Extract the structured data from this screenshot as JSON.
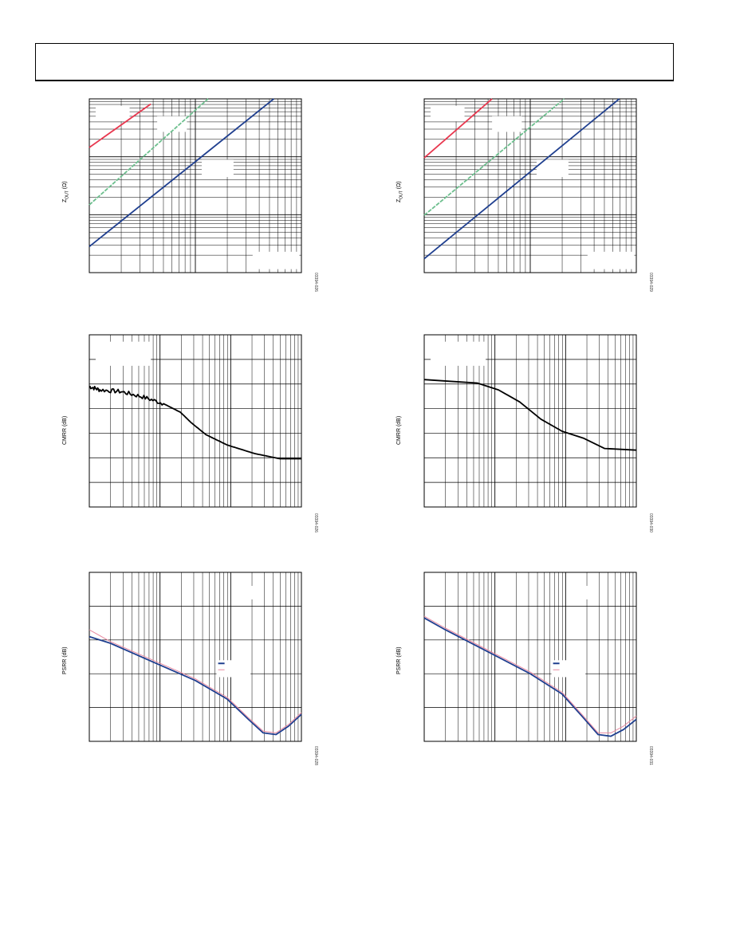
{
  "header": {
    "title": ""
  },
  "colors": {
    "red": "#e8384f",
    "green": "#6dbf8e",
    "blue": "#1f3f8f",
    "black": "#000000",
    "pink": "#e88aa0"
  },
  "panels": [
    {
      "id": "zout-left",
      "ylabel_main": "Z",
      "ylabel_sub": "OUT",
      "ylabel_unit": " (Ω)",
      "fig_id": "03394-026",
      "chart_data": {
        "type": "line",
        "xscale": "log",
        "yscale": "log",
        "xlim_decades": 2,
        "ylim_decades": 3,
        "legend_boxes": [
          "top-left",
          "top-middle",
          "middle",
          "bottom-right"
        ],
        "series": [
          {
            "color": "red",
            "points": [
              [
                0,
                0.72
              ],
              [
                0.29,
                0.97
              ]
            ]
          },
          {
            "color": "green",
            "points": [
              [
                0,
                0.39
              ],
              [
                0.56,
                1.0
              ]
            ]
          },
          {
            "color": "blue",
            "points": [
              [
                0,
                0.15
              ],
              [
                0.87,
                1.0
              ]
            ]
          }
        ]
      }
    },
    {
      "id": "zout-right",
      "ylabel_main": "Z",
      "ylabel_sub": "OUT",
      "ylabel_unit": " (Ω)",
      "fig_id": "03394-029",
      "chart_data": {
        "type": "line",
        "xscale": "log",
        "yscale": "log",
        "xlim_decades": 2,
        "ylim_decades": 3,
        "legend_boxes": [
          "top-left",
          "top-middle",
          "middle",
          "bottom-right"
        ],
        "series": [
          {
            "color": "red",
            "points": [
              [
                0,
                0.66
              ],
              [
                0.32,
                1.0
              ]
            ]
          },
          {
            "color": "green",
            "points": [
              [
                0,
                0.33
              ],
              [
                0.66,
                1.0
              ]
            ]
          },
          {
            "color": "blue",
            "points": [
              [
                0,
                0.08
              ],
              [
                0.92,
                1.0
              ]
            ]
          }
        ]
      }
    },
    {
      "id": "cmrr-left",
      "ylabel_main": "CMRR (dB)",
      "fig_id": "03394-026",
      "chart_data": {
        "type": "line",
        "xscale": "log",
        "xlim_decades": 3,
        "y_gridlines": 7,
        "legend_boxes": [
          "top-left"
        ],
        "series": [
          {
            "color": "black",
            "noisy": true,
            "points": [
              [
                0,
                0.7
              ],
              [
                0.05,
                0.68
              ],
              [
                0.15,
                0.67
              ],
              [
                0.25,
                0.64
              ],
              [
                0.35,
                0.6
              ],
              [
                0.43,
                0.55
              ],
              [
                0.48,
                0.49
              ],
              [
                0.55,
                0.42
              ],
              [
                0.65,
                0.36
              ],
              [
                0.78,
                0.31
              ],
              [
                0.9,
                0.28
              ],
              [
                1.0,
                0.28
              ]
            ]
          }
        ]
      }
    },
    {
      "id": "cmrr-right",
      "ylabel_main": "CMRR (dB)",
      "fig_id": "03394-030",
      "chart_data": {
        "type": "line",
        "xscale": "log",
        "xlim_decades": 3,
        "y_gridlines": 7,
        "legend_boxes": [
          "top-left"
        ],
        "series": [
          {
            "color": "black",
            "points": [
              [
                0,
                0.74
              ],
              [
                0.12,
                0.73
              ],
              [
                0.25,
                0.72
              ],
              [
                0.35,
                0.68
              ],
              [
                0.45,
                0.61
              ],
              [
                0.55,
                0.51
              ],
              [
                0.65,
                0.44
              ],
              [
                0.75,
                0.4
              ],
              [
                0.85,
                0.34
              ],
              [
                1.0,
                0.33
              ]
            ]
          }
        ]
      }
    },
    {
      "id": "psrr-left",
      "ylabel_main": "PSRR (dB)",
      "fig_id": "03394-028",
      "chart_data": {
        "type": "line",
        "xscale": "log",
        "xlim_decades": 3,
        "y_gridlines": 5,
        "legend_boxes": [
          "top-right",
          "middle-right"
        ],
        "series": [
          {
            "color": "blue",
            "points": [
              [
                0,
                0.62
              ],
              [
                0.1,
                0.58
              ],
              [
                0.3,
                0.47
              ],
              [
                0.5,
                0.36
              ],
              [
                0.65,
                0.25
              ],
              [
                0.75,
                0.13
              ],
              [
                0.82,
                0.05
              ],
              [
                0.88,
                0.04
              ],
              [
                0.94,
                0.09
              ],
              [
                1.0,
                0.16
              ]
            ]
          },
          {
            "color": "pink",
            "points": [
              [
                0,
                0.66
              ],
              [
                0.1,
                0.59
              ],
              [
                0.3,
                0.48
              ],
              [
                0.5,
                0.37
              ],
              [
                0.65,
                0.26
              ],
              [
                0.75,
                0.14
              ],
              [
                0.82,
                0.06
              ],
              [
                0.88,
                0.05
              ],
              [
                0.94,
                0.1
              ],
              [
                1.0,
                0.17
              ]
            ]
          }
        ]
      }
    },
    {
      "id": "psrr-right",
      "ylabel_main": "PSRR (dB)",
      "fig_id": "03394-031",
      "chart_data": {
        "type": "line",
        "xscale": "log",
        "xlim_decades": 3,
        "y_gridlines": 5,
        "legend_boxes": [
          "top-right",
          "middle-right"
        ],
        "series": [
          {
            "color": "blue",
            "points": [
              [
                0,
                0.73
              ],
              [
                0.1,
                0.66
              ],
              [
                0.3,
                0.53
              ],
              [
                0.5,
                0.4
              ],
              [
                0.65,
                0.28
              ],
              [
                0.75,
                0.14
              ],
              [
                0.82,
                0.04
              ],
              [
                0.88,
                0.03
              ],
              [
                0.94,
                0.07
              ],
              [
                1.0,
                0.13
              ]
            ]
          },
          {
            "color": "pink",
            "points": [
              [
                0,
                0.74
              ],
              [
                0.1,
                0.67
              ],
              [
                0.3,
                0.54
              ],
              [
                0.5,
                0.41
              ],
              [
                0.65,
                0.29
              ],
              [
                0.75,
                0.15
              ],
              [
                0.82,
                0.05
              ],
              [
                0.88,
                0.05
              ],
              [
                0.94,
                0.09
              ],
              [
                1.0,
                0.15
              ]
            ]
          }
        ]
      }
    }
  ]
}
